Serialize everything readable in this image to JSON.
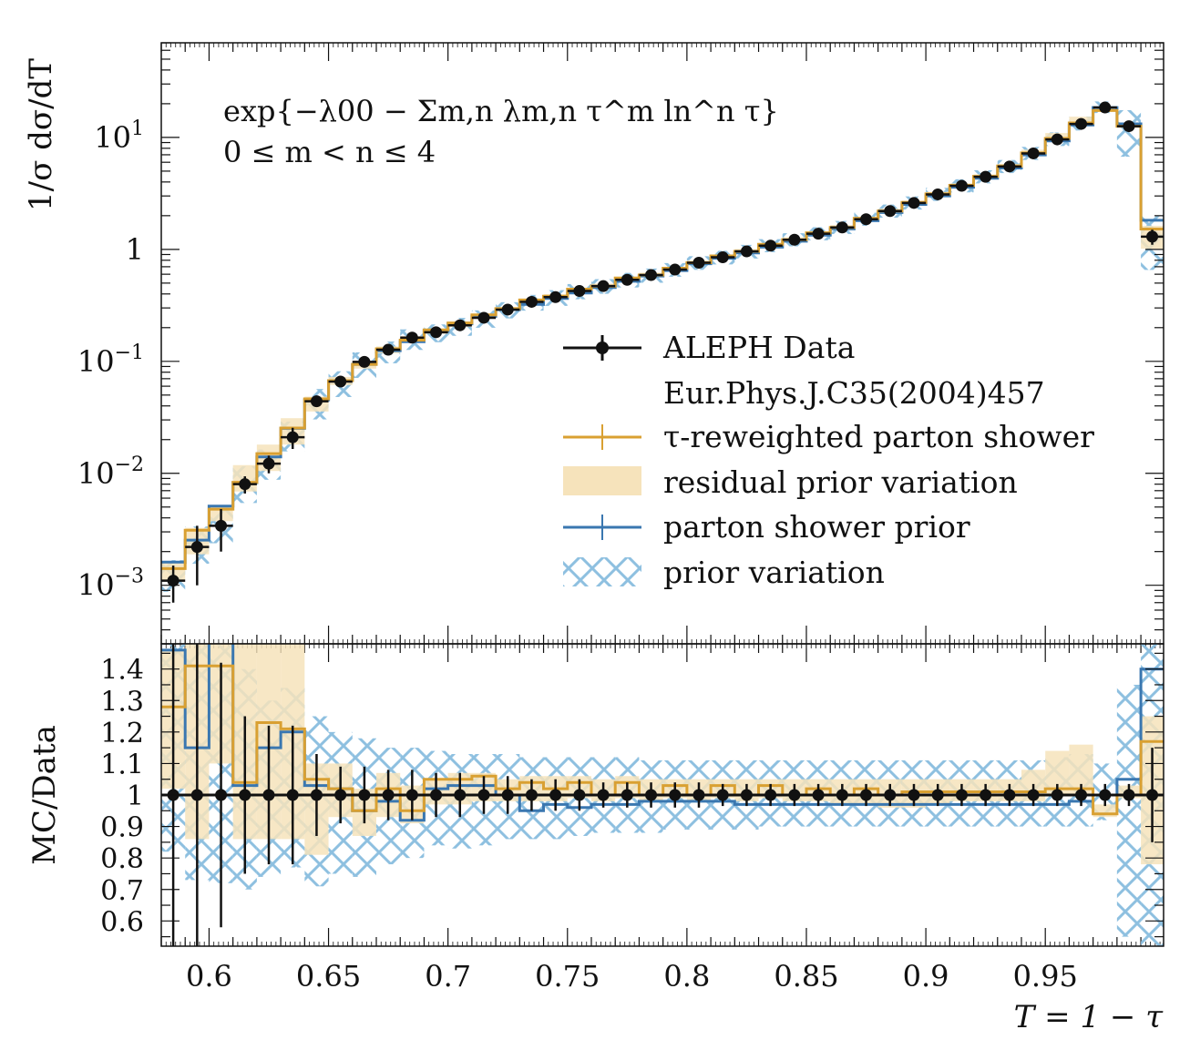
{
  "chart_data": [
    {
      "type": "line",
      "panel": "main",
      "ylabel": "1/σ dσ/dT",
      "yscale": "log",
      "ylim": [
        0.0003,
        70
      ],
      "xlim": [
        0.58,
        0.9995
      ],
      "ytick_labels": [
        {
          "value": 0.001,
          "base": "10",
          "exp": "−3"
        },
        {
          "value": 0.01,
          "base": "10",
          "exp": "−2"
        },
        {
          "value": 0.1,
          "base": "10",
          "exp": "−1"
        },
        {
          "value": 1,
          "base": "1",
          "exp": ""
        },
        {
          "value": 10,
          "base": "10",
          "exp": "1"
        }
      ],
      "annotation": [
        "exp{−λ00 − Σm,n λm,n τ^m ln^n τ}",
        "0 ≤ m < n ≤ 4"
      ],
      "legend": {
        "placement": "center-right",
        "entries": [
          {
            "label": "ALEPH Data",
            "label2": "Eur.Phys.J.C35(2004)457",
            "style": "points"
          },
          {
            "label": "τ-reweighted parton shower",
            "style": "line",
            "color": "#d9a032"
          },
          {
            "label": "residual prior variation",
            "style": "band",
            "color": "#f6e3bb"
          },
          {
            "label": "parton shower prior",
            "style": "line",
            "color": "#3a77b0"
          },
          {
            "label": "prior variation",
            "style": "hatch",
            "color": "#8ec0e0"
          }
        ]
      },
      "bin_edges": [
        0.58,
        0.59,
        0.6,
        0.61,
        0.62,
        0.63,
        0.64,
        0.65,
        0.66,
        0.67,
        0.68,
        0.69,
        0.7,
        0.71,
        0.72,
        0.73,
        0.74,
        0.75,
        0.76,
        0.77,
        0.78,
        0.79,
        0.8,
        0.81,
        0.82,
        0.83,
        0.84,
        0.85,
        0.86,
        0.87,
        0.88,
        0.89,
        0.9,
        0.91,
        0.92,
        0.93,
        0.94,
        0.95,
        0.96,
        0.97,
        0.98,
        0.99,
        0.9995
      ],
      "series": [
        {
          "name": "ALEPH Data",
          "color": "#111111",
          "y": [
            0.0011,
            0.0022,
            0.0034,
            0.008,
            0.0122,
            0.021,
            0.044,
            0.066,
            0.099,
            0.127,
            0.163,
            0.182,
            0.21,
            0.245,
            0.29,
            0.34,
            0.375,
            0.425,
            0.47,
            0.535,
            0.59,
            0.66,
            0.76,
            0.85,
            0.96,
            1.08,
            1.22,
            1.38,
            1.57,
            1.86,
            2.2,
            2.6,
            3.1,
            3.7,
            4.45,
            5.5,
            7.2,
            9.6,
            13.2,
            18.5,
            12.6,
            1.3
          ],
          "yerr": [
            0.0004,
            0.0012,
            0.0014,
            0.0014,
            0.0022,
            0.0045,
            0.0035,
            0.004,
            0.005,
            0.005,
            0.006,
            0.006,
            0.006,
            0.007,
            0.008,
            0.009,
            0.009,
            0.01,
            0.01,
            0.011,
            0.012,
            0.013,
            0.014,
            0.015,
            0.016,
            0.018,
            0.02,
            0.02,
            0.03,
            0.03,
            0.04,
            0.04,
            0.05,
            0.06,
            0.07,
            0.08,
            0.1,
            0.13,
            0.18,
            0.25,
            0.3,
            0.2
          ]
        },
        {
          "name": "τ-reweighted parton shower",
          "color": "#d9a032",
          "y": [
            0.00141,
            0.0031,
            0.00479,
            0.00832,
            0.01501,
            0.02541,
            0.0462,
            0.0673,
            0.0941,
            0.1295,
            0.1548,
            0.1911,
            0.2205,
            0.2597,
            0.2958,
            0.3536,
            0.3825,
            0.442,
            0.47,
            0.5564,
            0.59,
            0.6798,
            0.76,
            0.8755,
            0.96,
            1.1124,
            1.22,
            1.4076,
            1.57,
            1.8972,
            2.2,
            2.626,
            3.131,
            3.737,
            4.4945,
            5.555,
            7.272,
            9.792,
            13.464,
            17.39,
            12.6,
            1.521
          ]
        },
        {
          "name": "parton shower prior",
          "color": "#3a77b0",
          "y": [
            0.00161,
            0.00253,
            0.0051,
            0.00824,
            0.01403,
            0.0252,
            0.0453,
            0.0673,
            0.0941,
            0.1245,
            0.15,
            0.1856,
            0.2163,
            0.2524,
            0.29,
            0.323,
            0.364,
            0.408,
            0.456,
            0.519,
            0.578,
            0.647,
            0.745,
            0.833,
            0.931,
            1.048,
            1.183,
            1.339,
            1.523,
            1.804,
            2.134,
            2.522,
            3.007,
            3.589,
            4.317,
            5.335,
            6.984,
            9.312,
            12.936,
            18.5,
            13.23,
            1.82
          ]
        }
      ]
    },
    {
      "type": "line",
      "panel": "ratio",
      "ylabel": "MC/Data",
      "xlabel": "T = 1 − τ",
      "xlim": [
        0.58,
        0.9995
      ],
      "ylim": [
        0.52,
        1.48
      ],
      "yticks": [
        "0.6",
        "0.7",
        "0.8",
        "0.9",
        "1",
        "1.1",
        "1.2",
        "1.3",
        "1.4"
      ],
      "xticks": [
        "0.6",
        "0.65",
        "0.7",
        "0.75",
        "0.8",
        "0.85",
        "0.9",
        "0.95"
      ],
      "series": [
        {
          "name": "ALEPH Data",
          "color": "#111111",
          "y": [
            1,
            1,
            1,
            1,
            1,
            1,
            1,
            1,
            1,
            1,
            1,
            1,
            1,
            1,
            1,
            1,
            1,
            1,
            1,
            1,
            1,
            1,
            1,
            1,
            1,
            1,
            1,
            1,
            1,
            1,
            1,
            1,
            1,
            1,
            1,
            1,
            1,
            1,
            1,
            1,
            1,
            1
          ],
          "yerr": [
            0.5,
            0.55,
            0.42,
            0.25,
            0.22,
            0.22,
            0.13,
            0.09,
            0.09,
            0.08,
            0.08,
            0.07,
            0.07,
            0.06,
            0.06,
            0.05,
            0.05,
            0.05,
            0.04,
            0.04,
            0.04,
            0.04,
            0.04,
            0.035,
            0.035,
            0.035,
            0.035,
            0.035,
            0.035,
            0.035,
            0.035,
            0.035,
            0.035,
            0.035,
            0.035,
            0.035,
            0.035,
            0.035,
            0.035,
            0.035,
            0.035,
            0.15
          ]
        },
        {
          "name": "τ-reweighted parton shower",
          "color": "#d9a032",
          "y": [
            1.28,
            1.41,
            1.41,
            1.04,
            1.23,
            1.21,
            1.05,
            1.02,
            0.95,
            1.02,
            0.95,
            1.05,
            1.05,
            1.06,
            1.02,
            1.04,
            1.02,
            1.04,
            1.0,
            1.04,
            1.0,
            1.03,
            1.0,
            1.03,
            1.0,
            1.03,
            1.0,
            1.02,
            1.0,
            1.02,
            1.0,
            1.01,
            1.01,
            1.01,
            1.01,
            1.01,
            1.01,
            1.02,
            1.02,
            0.94,
            1.0,
            1.17
          ]
        },
        {
          "name": "parton shower prior",
          "color": "#3a77b0",
          "y": [
            1.46,
            1.15,
            1.5,
            1.03,
            1.15,
            1.2,
            1.03,
            1.02,
            0.95,
            0.98,
            0.92,
            1.02,
            1.03,
            1.03,
            1.0,
            0.95,
            0.97,
            0.96,
            0.97,
            0.97,
            0.98,
            0.98,
            0.98,
            0.98,
            0.97,
            0.97,
            0.97,
            0.97,
            0.97,
            0.97,
            0.97,
            0.97,
            0.97,
            0.97,
            0.97,
            0.97,
            0.97,
            0.97,
            0.98,
            1.0,
            1.05,
            1.4
          ]
        }
      ],
      "bands": {
        "residual prior variation": {
          "lo": [
            1.02,
            0.86,
            1.1,
            0.86,
            0.86,
            0.86,
            0.81,
            0.93,
            0.87,
            0.93,
            0.91,
            0.97,
            0.97,
            0.98,
            0.98,
            0.98,
            0.98,
            0.99,
            0.98,
            0.99,
            0.98,
            0.99,
            0.98,
            0.99,
            0.98,
            0.99,
            0.98,
            0.98,
            0.97,
            0.97,
            0.96,
            0.96,
            0.97,
            0.98,
            0.98,
            0.98,
            0.98,
            1.0,
            1.0,
            0.93,
            0.99,
            0.78
          ],
          "hi": [
            1.46,
            1.48,
            1.48,
            1.48,
            1.48,
            1.48,
            1.1,
            1.1,
            1.02,
            1.07,
            1.03,
            1.05,
            1.07,
            1.07,
            1.05,
            1.06,
            1.06,
            1.06,
            1.05,
            1.06,
            1.05,
            1.05,
            1.05,
            1.05,
            1.05,
            1.05,
            1.05,
            1.05,
            1.05,
            1.05,
            1.05,
            1.05,
            1.05,
            1.05,
            1.05,
            1.05,
            1.08,
            1.14,
            1.16,
            0.97,
            1.03,
            1.25
          ]
        },
        "prior variation": {
          "lo": [
            0.82,
            0.73,
            0.72,
            0.7,
            0.74,
            0.77,
            0.71,
            0.75,
            0.74,
            0.78,
            0.8,
            0.84,
            0.83,
            0.84,
            0.86,
            0.86,
            0.86,
            0.87,
            0.88,
            0.88,
            0.88,
            0.89,
            0.89,
            0.89,
            0.89,
            0.9,
            0.9,
            0.9,
            0.9,
            0.9,
            0.9,
            0.9,
            0.9,
            0.9,
            0.9,
            0.9,
            0.9,
            0.9,
            0.9,
            0.92,
            0.55,
            0.52
          ],
          "hi": [
            1.48,
            1.48,
            1.48,
            1.4,
            1.3,
            1.34,
            1.25,
            1.2,
            1.18,
            1.15,
            1.15,
            1.14,
            1.13,
            1.13,
            1.13,
            1.12,
            1.12,
            1.12,
            1.12,
            1.12,
            1.11,
            1.11,
            1.11,
            1.11,
            1.11,
            1.11,
            1.11,
            1.11,
            1.11,
            1.11,
            1.11,
            1.11,
            1.11,
            1.11,
            1.11,
            1.11,
            1.11,
            1.12,
            1.13,
            1.1,
            1.35,
            1.48
          ]
        }
      }
    }
  ]
}
